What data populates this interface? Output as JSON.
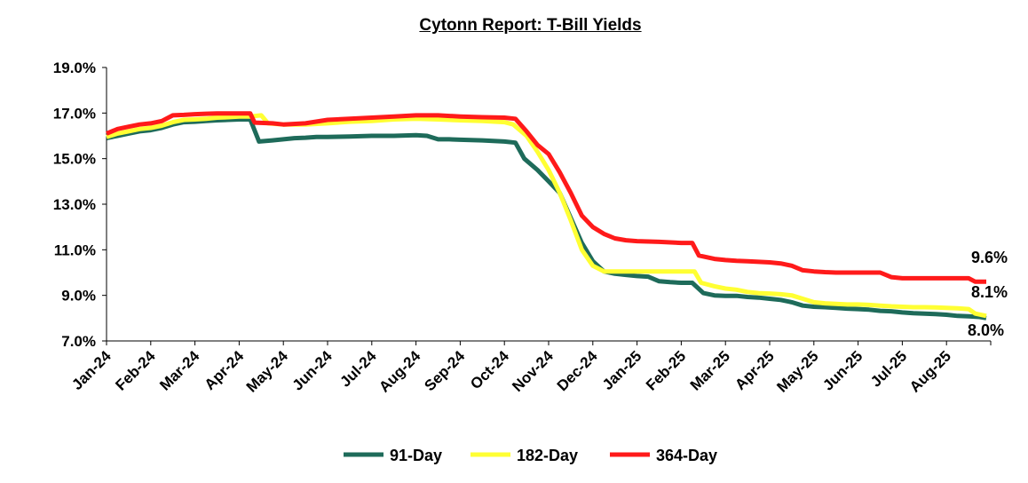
{
  "chart_data": {
    "type": "line",
    "title": "Cytonn Report: T-Bill Yields",
    "xlabel": "",
    "ylabel": "",
    "ylim": [
      7.0,
      19.0
    ],
    "yticks": [
      "7.0%",
      "9.0%",
      "11.0%",
      "13.0%",
      "15.0%",
      "17.0%",
      "19.0%"
    ],
    "xticks": [
      "Jan-24",
      "Feb-24",
      "Mar-24",
      "Apr-24",
      "May-24",
      "Jun-24",
      "Jul-24",
      "Aug-24",
      "Sep-24",
      "Oct-24",
      "Nov-24",
      "Dec-24",
      "Jan-25",
      "Feb-25",
      "Mar-25",
      "Apr-25",
      "May-25",
      "Jun-25",
      "Jul-25",
      "Aug-25"
    ],
    "grid": false,
    "legend_position": "bottom",
    "series": [
      {
        "name": "91-Day",
        "color": "#1e6b5a",
        "points": [
          [
            0,
            15.9
          ],
          [
            0.25,
            16.0
          ],
          [
            0.5,
            16.1
          ],
          [
            0.75,
            16.2
          ],
          [
            1.0,
            16.25
          ],
          [
            1.25,
            16.35
          ],
          [
            1.5,
            16.5
          ],
          [
            1.75,
            16.6
          ],
          [
            2.0,
            16.62
          ],
          [
            2.25,
            16.65
          ],
          [
            2.5,
            16.68
          ],
          [
            2.75,
            16.7
          ],
          [
            3.0,
            16.72
          ],
          [
            3.25,
            16.72
          ],
          [
            3.45,
            15.75
          ],
          [
            3.75,
            15.8
          ],
          [
            4.0,
            15.85
          ],
          [
            4.25,
            15.9
          ],
          [
            4.5,
            15.92
          ],
          [
            4.75,
            15.95
          ],
          [
            5.0,
            15.95
          ],
          [
            5.25,
            15.96
          ],
          [
            5.5,
            15.97
          ],
          [
            6.0,
            16.0
          ],
          [
            6.5,
            16.0
          ],
          [
            7.0,
            16.03
          ],
          [
            7.25,
            16.0
          ],
          [
            7.5,
            15.85
          ],
          [
            7.75,
            15.85
          ],
          [
            8.0,
            15.83
          ],
          [
            8.5,
            15.8
          ],
          [
            9.0,
            15.75
          ],
          [
            9.25,
            15.7
          ],
          [
            9.45,
            15.0
          ],
          [
            9.75,
            14.5
          ],
          [
            10.0,
            14.0
          ],
          [
            10.25,
            13.5
          ],
          [
            10.5,
            12.4
          ],
          [
            10.75,
            11.3
          ],
          [
            11.0,
            10.5
          ],
          [
            11.25,
            10.05
          ],
          [
            11.5,
            9.95
          ],
          [
            11.75,
            9.9
          ],
          [
            12.0,
            9.85
          ],
          [
            12.25,
            9.82
          ],
          [
            12.5,
            9.62
          ],
          [
            12.75,
            9.58
          ],
          [
            13.0,
            9.55
          ],
          [
            13.25,
            9.55
          ],
          [
            13.5,
            9.1
          ],
          [
            13.75,
            9.0
          ],
          [
            14.0,
            8.98
          ],
          [
            14.25,
            8.98
          ],
          [
            14.5,
            8.93
          ],
          [
            14.75,
            8.9
          ],
          [
            15.0,
            8.85
          ],
          [
            15.25,
            8.8
          ],
          [
            15.5,
            8.7
          ],
          [
            15.75,
            8.55
          ],
          [
            16.0,
            8.5
          ],
          [
            16.25,
            8.48
          ],
          [
            16.5,
            8.45
          ],
          [
            16.75,
            8.42
          ],
          [
            17.0,
            8.4
          ],
          [
            17.25,
            8.37
          ],
          [
            17.5,
            8.32
          ],
          [
            17.75,
            8.3
          ],
          [
            18.0,
            8.25
          ],
          [
            18.25,
            8.22
          ],
          [
            18.5,
            8.2
          ],
          [
            18.75,
            8.18
          ],
          [
            19.0,
            8.15
          ],
          [
            19.25,
            8.1
          ],
          [
            19.5,
            8.08
          ],
          [
            19.75,
            8.05
          ],
          [
            19.9,
            8.0
          ]
        ]
      },
      {
        "name": "182-Day",
        "color": "#ffff33",
        "points": [
          [
            0,
            15.95
          ],
          [
            0.25,
            16.1
          ],
          [
            0.5,
            16.2
          ],
          [
            0.75,
            16.3
          ],
          [
            1.0,
            16.35
          ],
          [
            1.25,
            16.45
          ],
          [
            1.5,
            16.6
          ],
          [
            1.75,
            16.7
          ],
          [
            2.0,
            16.72
          ],
          [
            2.25,
            16.75
          ],
          [
            2.5,
            16.8
          ],
          [
            2.75,
            16.82
          ],
          [
            3.0,
            16.85
          ],
          [
            3.25,
            16.85
          ],
          [
            3.5,
            16.9
          ],
          [
            3.65,
            16.55
          ],
          [
            4.0,
            16.5
          ],
          [
            4.5,
            16.5
          ],
          [
            5.0,
            16.55
          ],
          [
            5.5,
            16.62
          ],
          [
            6.0,
            16.65
          ],
          [
            6.5,
            16.72
          ],
          [
            7.0,
            16.75
          ],
          [
            7.5,
            16.72
          ],
          [
            8.0,
            16.68
          ],
          [
            8.5,
            16.65
          ],
          [
            9.0,
            16.6
          ],
          [
            9.2,
            16.5
          ],
          [
            9.5,
            16.0
          ],
          [
            9.75,
            15.3
          ],
          [
            10.0,
            14.5
          ],
          [
            10.25,
            13.5
          ],
          [
            10.5,
            12.3
          ],
          [
            10.75,
            11.0
          ],
          [
            11.0,
            10.3
          ],
          [
            11.25,
            10.05
          ],
          [
            11.5,
            10.05
          ],
          [
            12.0,
            10.05
          ],
          [
            12.5,
            10.05
          ],
          [
            13.0,
            10.05
          ],
          [
            13.3,
            10.05
          ],
          [
            13.45,
            9.55
          ],
          [
            13.75,
            9.4
          ],
          [
            14.0,
            9.3
          ],
          [
            14.25,
            9.25
          ],
          [
            14.5,
            9.15
          ],
          [
            14.75,
            9.1
          ],
          [
            15.0,
            9.08
          ],
          [
            15.25,
            9.05
          ],
          [
            15.5,
            9.0
          ],
          [
            15.75,
            8.85
          ],
          [
            16.0,
            8.7
          ],
          [
            16.25,
            8.65
          ],
          [
            16.5,
            8.63
          ],
          [
            16.75,
            8.6
          ],
          [
            17.0,
            8.6
          ],
          [
            17.25,
            8.58
          ],
          [
            17.5,
            8.55
          ],
          [
            17.75,
            8.52
          ],
          [
            18.0,
            8.5
          ],
          [
            18.25,
            8.48
          ],
          [
            18.5,
            8.48
          ],
          [
            18.75,
            8.47
          ],
          [
            19.0,
            8.45
          ],
          [
            19.25,
            8.43
          ],
          [
            19.5,
            8.4
          ],
          [
            19.65,
            8.2
          ],
          [
            19.9,
            8.1
          ]
        ]
      },
      {
        "name": "364-Day",
        "color": "#ff1a1a",
        "points": [
          [
            0,
            16.1
          ],
          [
            0.25,
            16.3
          ],
          [
            0.5,
            16.4
          ],
          [
            0.75,
            16.5
          ],
          [
            1.0,
            16.55
          ],
          [
            1.25,
            16.65
          ],
          [
            1.5,
            16.9
          ],
          [
            1.75,
            16.92
          ],
          [
            2.0,
            16.95
          ],
          [
            2.25,
            16.97
          ],
          [
            2.5,
            16.98
          ],
          [
            2.75,
            16.98
          ],
          [
            3.0,
            16.98
          ],
          [
            3.25,
            16.98
          ],
          [
            3.35,
            16.58
          ],
          [
            3.75,
            16.55
          ],
          [
            4.0,
            16.5
          ],
          [
            4.5,
            16.55
          ],
          [
            5.0,
            16.7
          ],
          [
            5.5,
            16.75
          ],
          [
            6.0,
            16.8
          ],
          [
            6.5,
            16.85
          ],
          [
            7.0,
            16.9
          ],
          [
            7.5,
            16.9
          ],
          [
            8.0,
            16.85
          ],
          [
            8.5,
            16.82
          ],
          [
            9.0,
            16.8
          ],
          [
            9.25,
            16.75
          ],
          [
            9.5,
            16.2
          ],
          [
            9.75,
            15.6
          ],
          [
            10.0,
            15.2
          ],
          [
            10.25,
            14.4
          ],
          [
            10.5,
            13.5
          ],
          [
            10.75,
            12.5
          ],
          [
            11.0,
            12.0
          ],
          [
            11.25,
            11.7
          ],
          [
            11.5,
            11.5
          ],
          [
            11.75,
            11.42
          ],
          [
            12.0,
            11.38
          ],
          [
            12.5,
            11.35
          ],
          [
            13.0,
            11.3
          ],
          [
            13.25,
            11.3
          ],
          [
            13.4,
            10.75
          ],
          [
            13.75,
            10.6
          ],
          [
            14.0,
            10.55
          ],
          [
            14.25,
            10.52
          ],
          [
            14.5,
            10.5
          ],
          [
            15.0,
            10.45
          ],
          [
            15.25,
            10.4
          ],
          [
            15.5,
            10.3
          ],
          [
            15.75,
            10.1
          ],
          [
            16.0,
            10.05
          ],
          [
            16.25,
            10.02
          ],
          [
            16.5,
            10.0
          ],
          [
            17.0,
            10.0
          ],
          [
            17.25,
            10.0
          ],
          [
            17.5,
            10.0
          ],
          [
            17.75,
            9.8
          ],
          [
            18.0,
            9.75
          ],
          [
            18.5,
            9.75
          ],
          [
            19.0,
            9.75
          ],
          [
            19.5,
            9.75
          ],
          [
            19.65,
            9.6
          ],
          [
            19.9,
            9.6
          ]
        ]
      }
    ],
    "end_labels": [
      "9.6%",
      "8.1%",
      "8.0%"
    ]
  }
}
